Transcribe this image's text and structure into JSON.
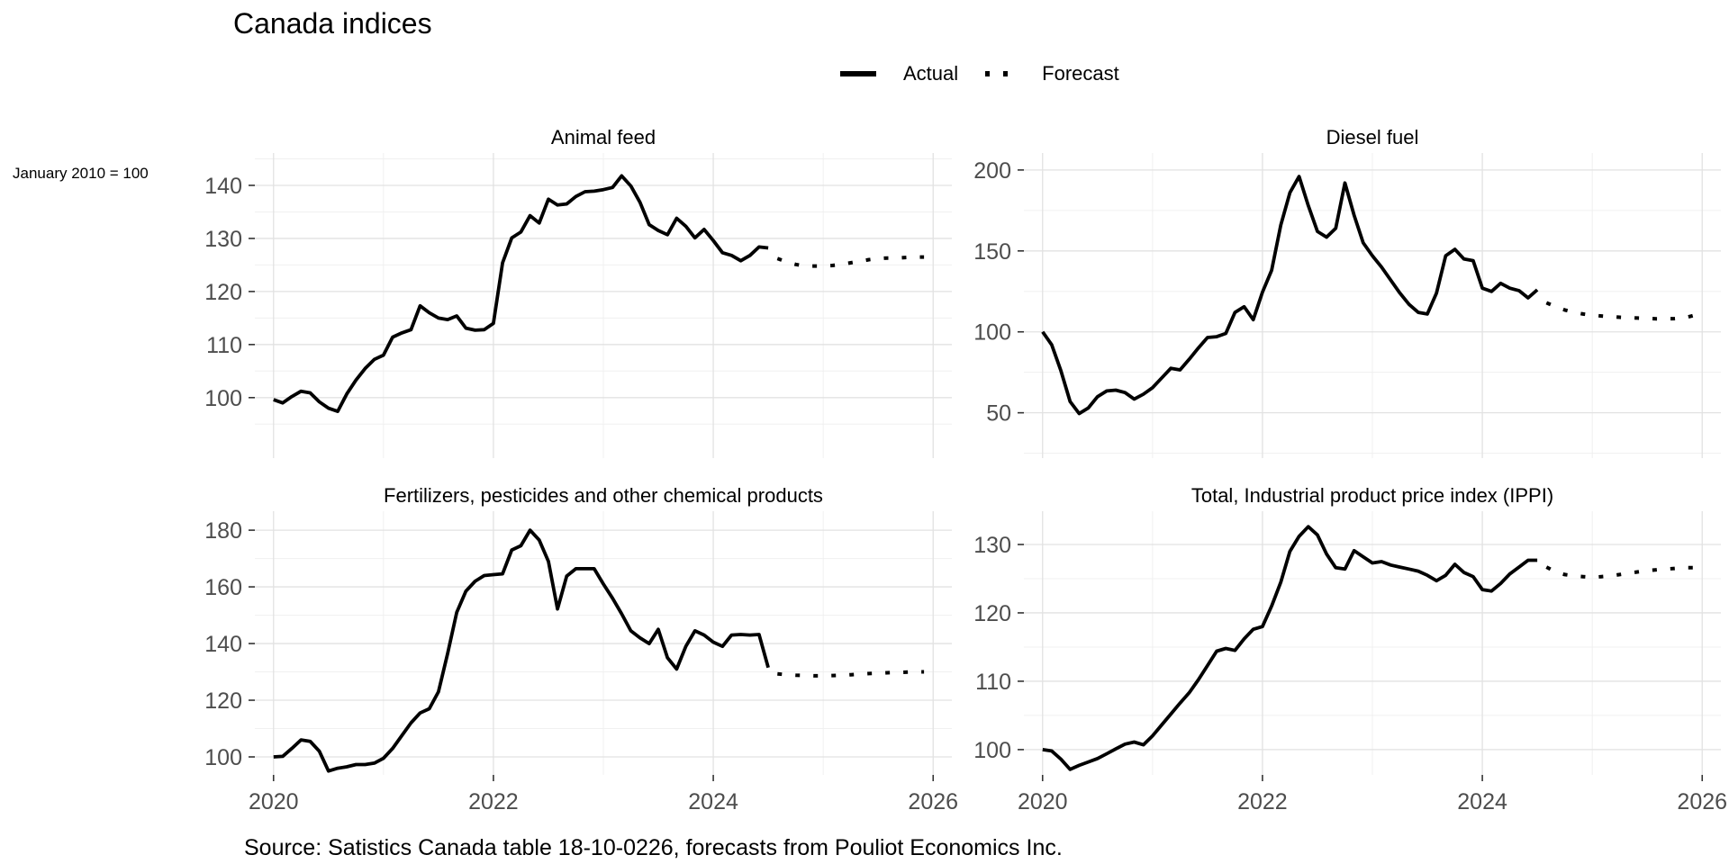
{
  "title": "Canada indices",
  "axis_note": "January 2010 = 100",
  "source": "Source: Satistics Canada table 18-10-0226, forecasts from Pouliot Economics Inc.",
  "legend": {
    "actual_label": "Actual",
    "forecast_label": "Forecast",
    "position": "top"
  },
  "colors": {
    "line": "#000000",
    "axis_text": "#4d4d4d",
    "tick_mark": "#333333",
    "grid_major": "#e2e2e2",
    "grid_minor": "#f0f0f0",
    "background": "#ffffff"
  },
  "chart_data": [
    {
      "type": "line",
      "title": "Animal feed",
      "x_ticks": [
        2020,
        2022,
        2024,
        2026
      ],
      "x_minor_ticks": [
        2021,
        2023,
        2025
      ],
      "x_domain": [
        2019.83,
        2026.17
      ],
      "y_ticks": [
        100,
        110,
        120,
        130,
        140
      ],
      "y_domain": [
        88.6,
        146.1
      ],
      "series": [
        {
          "name": "Actual",
          "style": "solid",
          "start": "2020-01",
          "values": [
            99.6,
            99.0,
            100.2,
            101.2,
            100.9,
            99.2,
            98.0,
            97.4,
            100.7,
            103.3,
            105.5,
            107.2,
            108.0,
            111.4,
            112.2,
            112.8,
            117.3,
            116.0,
            115.0,
            114.7,
            115.4,
            113.1,
            112.7,
            112.8,
            114.0,
            125.4,
            130.1,
            131.2,
            134.3,
            132.9,
            137.4,
            136.3,
            136.5,
            137.9,
            138.8,
            138.9,
            139.2,
            139.6,
            141.8,
            139.9,
            136.8,
            132.6,
            131.5,
            130.7,
            133.8,
            132.3,
            130.1,
            131.7,
            129.6,
            127.3,
            126.8,
            125.8,
            126.8,
            128.4,
            128.2
          ]
        },
        {
          "name": "Forecast",
          "style": "dotted",
          "start": "2024-08",
          "values": [
            126.2,
            125.6,
            125.1,
            124.8,
            124.8,
            124.8,
            124.9,
            125.1,
            125.4,
            125.7,
            126.0,
            126.2,
            126.3,
            126.3,
            126.4,
            126.5,
            126.5
          ]
        }
      ]
    },
    {
      "type": "line",
      "title": "Diesel fuel",
      "x_ticks": [
        2020,
        2022,
        2024,
        2026
      ],
      "x_minor_ticks": [
        2021,
        2023,
        2025
      ],
      "x_domain": [
        2019.83,
        2026.17
      ],
      "y_ticks": [
        50,
        100,
        150,
        200
      ],
      "y_domain": [
        22,
        210.5
      ],
      "series": [
        {
          "name": "Actual",
          "style": "solid",
          "start": "2020-01",
          "values": [
            100,
            92,
            76,
            57,
            49.5,
            53,
            60,
            63.5,
            64,
            62.5,
            58.5,
            61.5,
            65.5,
            71.5,
            77.5,
            76.5,
            83,
            90,
            96.5,
            97,
            99,
            112,
            115.5,
            107.5,
            124.5,
            138,
            166,
            186,
            196,
            178,
            162,
            158.5,
            164,
            192,
            172,
            155,
            147,
            140,
            132,
            124,
            117,
            112,
            111,
            124,
            147,
            151,
            145,
            144,
            127,
            125,
            130,
            127,
            125.5,
            121,
            126
          ]
        },
        {
          "name": "Forecast",
          "style": "dotted",
          "start": "2024-08",
          "values": [
            118,
            115.5,
            113.5,
            112,
            111,
            110.3,
            109.8,
            109.4,
            109,
            108.7,
            108.5,
            108.3,
            108.1,
            108,
            108.2,
            108.6,
            110
          ]
        }
      ]
    },
    {
      "type": "line",
      "title": "Fertilizers, pesticides and other chemical products",
      "x_ticks": [
        2020,
        2022,
        2024,
        2026
      ],
      "x_minor_ticks": [
        2021,
        2023,
        2025
      ],
      "x_domain": [
        2019.83,
        2026.17
      ],
      "y_ticks": [
        100,
        120,
        140,
        160,
        180
      ],
      "y_domain": [
        93.65,
        186.7
      ],
      "series": [
        {
          "name": "Actual",
          "style": "solid",
          "start": "2020-01",
          "values": [
            100,
            100.2,
            103,
            106,
            105.5,
            102,
            95,
            96,
            96.5,
            97.3,
            97.3,
            97.8,
            99.5,
            103,
            107.5,
            112,
            115.5,
            117,
            123,
            136.5,
            151,
            158.5,
            162,
            164,
            164.3,
            164.6,
            173,
            174.5,
            180,
            176.5,
            169,
            152.2,
            163.8,
            166.4,
            166.4,
            166.4,
            161,
            156,
            150.5,
            144.5,
            142,
            140,
            145,
            135,
            131,
            139,
            144.5,
            143,
            140.5,
            139,
            143,
            143.2,
            143,
            143.2,
            131.5
          ]
        },
        {
          "name": "Forecast",
          "style": "dotted",
          "start": "2024-08",
          "values": [
            129.3,
            129.0,
            128.8,
            128.7,
            128.6,
            128.6,
            128.7,
            128.8,
            129.0,
            129.2,
            129.4,
            129.5,
            129.7,
            129.8,
            129.9,
            130.0,
            130.0
          ]
        }
      ]
    },
    {
      "type": "line",
      "title": "Total, Industrial product price index (IPPI)",
      "x_ticks": [
        2020,
        2022,
        2024,
        2026
      ],
      "x_minor_ticks": [
        2021,
        2023,
        2025
      ],
      "x_domain": [
        2019.83,
        2026.17
      ],
      "y_ticks": [
        100,
        110,
        120,
        130
      ],
      "y_domain": [
        96.3,
        134.87
      ],
      "series": [
        {
          "name": "Actual",
          "style": "solid",
          "start": "2020-01",
          "values": [
            100,
            99.8,
            98.6,
            97.1,
            97.7,
            98.2,
            98.7,
            99.4,
            100.1,
            100.8,
            101.1,
            100.7,
            102,
            103.6,
            105.2,
            106.8,
            108.3,
            110.2,
            112.3,
            114.4,
            114.8,
            114.5,
            116.2,
            117.6,
            118,
            121,
            124.5,
            129,
            131.2,
            132.6,
            131.4,
            128.6,
            126.6,
            126.4,
            129.1,
            128.2,
            127.3,
            127.5,
            127,
            126.7,
            126.4,
            126.1,
            125.5,
            124.7,
            125.5,
            127.1,
            125.9,
            125.3,
            123.4,
            123.2,
            124.3,
            125.7,
            126.7,
            127.7,
            127.7
          ]
        },
        {
          "name": "Forecast",
          "style": "dotted",
          "start": "2024-08",
          "values": [
            126.7,
            126.0,
            125.6,
            125.4,
            125.3,
            125.2,
            125.3,
            125.4,
            125.6,
            125.8,
            126.0,
            126.2,
            126.3,
            126.4,
            126.5,
            126.6,
            126.6
          ]
        }
      ]
    }
  ]
}
